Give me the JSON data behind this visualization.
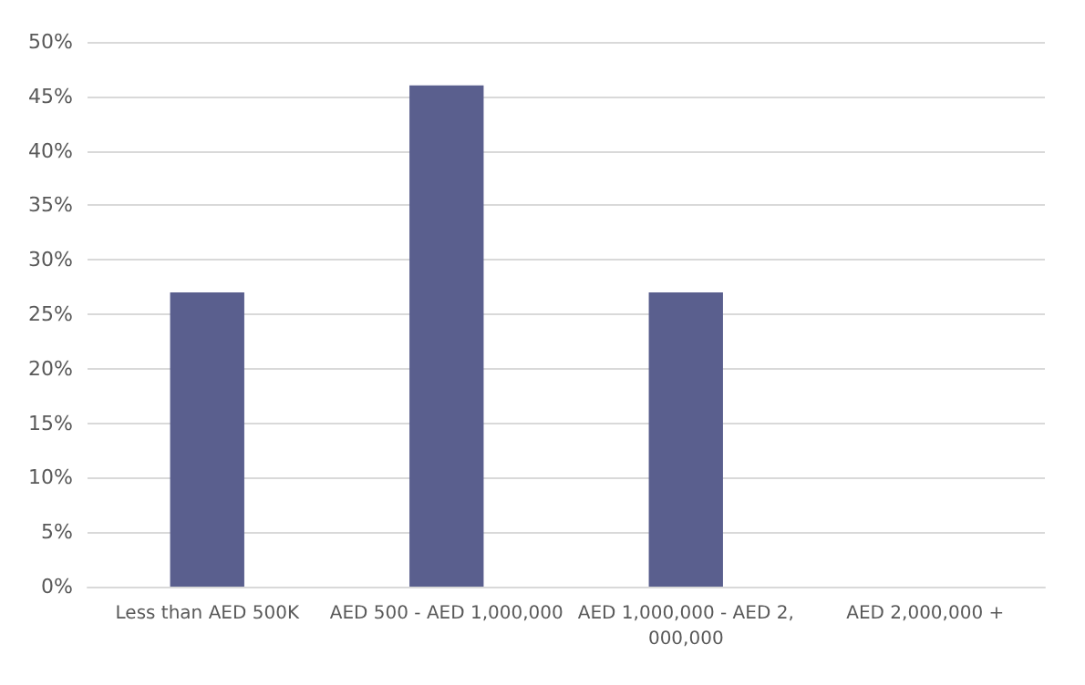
{
  "chart_data": {
    "type": "bar",
    "categories": [
      "Less than AED 500K",
      "AED 500 - AED 1,000,000",
      "AED 1,000,000 - AED 2,000,000",
      "AED 2,000,000 +"
    ],
    "values": [
      27,
      46,
      27,
      0
    ],
    "color": "#5a5f8e",
    "ylim": [
      0,
      50
    ],
    "yticks": [
      {
        "value": 0,
        "label": "0%"
      },
      {
        "value": 5,
        "label": "5%"
      },
      {
        "value": 10,
        "label": "10%"
      },
      {
        "value": 15,
        "label": "15%"
      },
      {
        "value": 20,
        "label": "20%"
      },
      {
        "value": 25,
        "label": "25%"
      },
      {
        "value": 30,
        "label": "30%"
      },
      {
        "value": 35,
        "label": "35%"
      },
      {
        "value": 40,
        "label": "40%"
      },
      {
        "value": 45,
        "label": "45%"
      },
      {
        "value": 50,
        "label": "50%"
      }
    ],
    "grid": "y"
  }
}
